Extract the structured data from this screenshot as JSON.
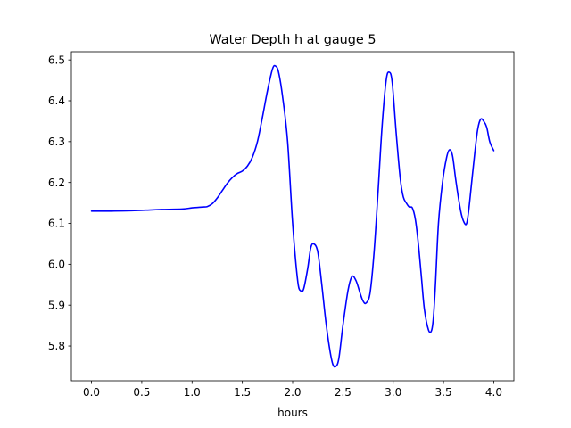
{
  "chart_data": {
    "type": "line",
    "title": "Water Depth h at gauge 5",
    "xlabel": "hours",
    "ylabel": "",
    "xlim": [
      -0.2,
      4.2
    ],
    "ylim": [
      5.715,
      6.52
    ],
    "xticks": [
      0.0,
      0.5,
      1.0,
      1.5,
      2.0,
      2.5,
      3.0,
      3.5,
      4.0
    ],
    "xtick_labels": [
      "0.0",
      "0.5",
      "1.0",
      "1.5",
      "2.0",
      "2.5",
      "3.0",
      "3.5",
      "4.0"
    ],
    "yticks": [
      5.8,
      5.9,
      6.0,
      6.1,
      6.2,
      6.3,
      6.4,
      6.5
    ],
    "ytick_labels": [
      "5.8",
      "5.9",
      "6.0",
      "6.1",
      "6.2",
      "6.3",
      "6.4",
      "6.5"
    ],
    "grid": false,
    "series": [
      {
        "color": "#0000ff",
        "x": [
          0.0,
          0.2,
          0.4,
          0.6,
          0.7,
          0.9,
          1.0,
          1.1,
          1.15,
          1.2,
          1.25,
          1.3,
          1.35,
          1.4,
          1.45,
          1.5,
          1.55,
          1.6,
          1.65,
          1.7,
          1.75,
          1.8,
          1.83,
          1.86,
          1.9,
          1.95,
          2.0,
          2.05,
          2.08,
          2.11,
          2.15,
          2.18,
          2.21,
          2.25,
          2.29,
          2.33,
          2.37,
          2.4,
          2.43,
          2.46,
          2.5,
          2.55,
          2.59,
          2.63,
          2.67,
          2.7,
          2.73,
          2.77,
          2.81,
          2.85,
          2.89,
          2.93,
          2.96,
          2.99,
          3.03,
          3.07,
          3.1,
          3.13,
          3.16,
          3.19,
          3.22,
          3.25,
          3.28,
          3.31,
          3.35,
          3.38,
          3.4,
          3.42,
          3.45,
          3.49,
          3.53,
          3.56,
          3.59,
          3.62,
          3.65,
          3.68,
          3.71,
          3.73,
          3.75,
          3.78,
          3.81,
          3.84,
          3.87,
          3.9,
          3.93,
          3.96,
          4.0
        ],
        "y": [
          6.13,
          6.13,
          6.131,
          6.133,
          6.134,
          6.135,
          6.138,
          6.14,
          6.141,
          6.148,
          6.162,
          6.18,
          6.198,
          6.212,
          6.222,
          6.228,
          6.24,
          6.262,
          6.3,
          6.36,
          6.425,
          6.478,
          6.485,
          6.47,
          6.41,
          6.3,
          6.1,
          5.96,
          5.935,
          5.94,
          5.99,
          6.04,
          6.05,
          6.03,
          5.95,
          5.86,
          5.79,
          5.755,
          5.75,
          5.77,
          5.85,
          5.935,
          5.97,
          5.96,
          5.93,
          5.91,
          5.905,
          5.93,
          6.03,
          6.18,
          6.34,
          6.45,
          6.47,
          6.445,
          6.32,
          6.21,
          6.165,
          6.15,
          6.14,
          6.138,
          6.11,
          6.05,
          5.97,
          5.89,
          5.84,
          5.837,
          5.87,
          5.95,
          6.1,
          6.2,
          6.26,
          6.28,
          6.265,
          6.21,
          6.16,
          6.12,
          6.1,
          6.1,
          6.13,
          6.2,
          6.27,
          6.33,
          6.355,
          6.35,
          6.335,
          6.3,
          6.278
        ]
      }
    ]
  }
}
